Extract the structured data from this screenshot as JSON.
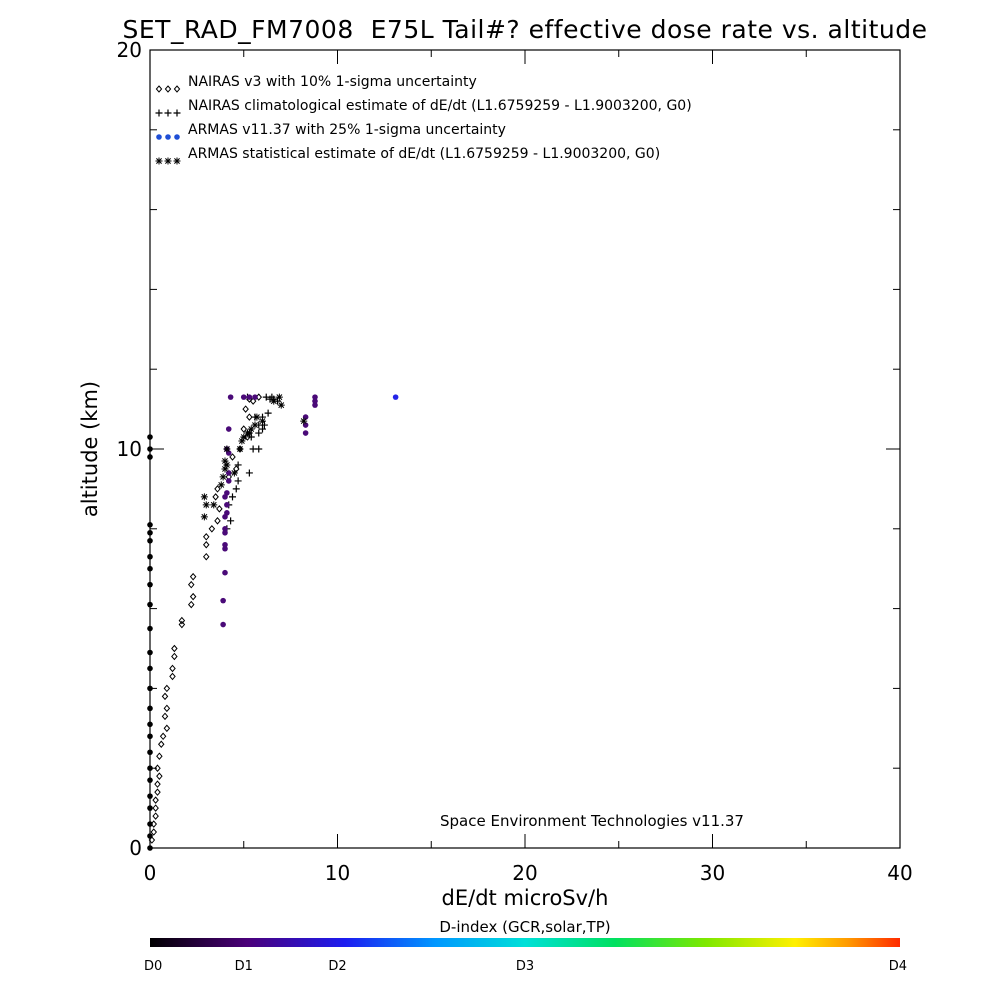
{
  "chart_data": {
    "type": "scatter",
    "title": "SET_RAD_FM7008  E75L Tail#? effective dose rate vs. altitude",
    "xlabel": "dE/dt microSv/h",
    "ylabel": "altitude (km)",
    "xlim": [
      0,
      40
    ],
    "ylim": [
      0,
      20
    ],
    "x_ticks": [
      "0",
      "10",
      "20",
      "30",
      "40"
    ],
    "y_ticks": [
      "0",
      "10",
      "20"
    ],
    "legend_position": "top-left",
    "annotation": "Space Environment Technologies v11.37",
    "colorbar": {
      "title": "D-index (GCR,solar,TP)",
      "labels": [
        "D0",
        "D1",
        "D2",
        "D3",
        "D4"
      ],
      "positions": [
        0,
        0.125,
        0.25,
        0.5,
        1.0
      ]
    },
    "series": [
      {
        "name": "NAIRAS v3 with 10% 1-sigma uncertainty",
        "marker": "diamond",
        "color": "#000000",
        "points": [
          [
            0.1,
            0.2
          ],
          [
            0.2,
            0.4
          ],
          [
            0.2,
            0.6
          ],
          [
            0.3,
            0.8
          ],
          [
            0.3,
            1.0
          ],
          [
            0.3,
            1.2
          ],
          [
            0.4,
            1.4
          ],
          [
            0.4,
            1.6
          ],
          [
            0.5,
            1.8
          ],
          [
            0.4,
            2.0
          ],
          [
            0.5,
            2.3
          ],
          [
            0.6,
            2.6
          ],
          [
            0.7,
            2.8
          ],
          [
            0.9,
            3.0
          ],
          [
            0.8,
            3.3
          ],
          [
            0.9,
            3.5
          ],
          [
            0.8,
            3.8
          ],
          [
            0.9,
            4.0
          ],
          [
            1.2,
            4.3
          ],
          [
            1.2,
            4.5
          ],
          [
            1.3,
            4.8
          ],
          [
            1.3,
            5.0
          ],
          [
            1.7,
            5.6
          ],
          [
            1.7,
            5.7
          ],
          [
            2.2,
            6.1
          ],
          [
            2.3,
            6.3
          ],
          [
            2.2,
            6.6
          ],
          [
            2.3,
            6.8
          ],
          [
            3.0,
            7.3
          ],
          [
            3.0,
            7.6
          ],
          [
            3.0,
            7.8
          ],
          [
            3.3,
            8.0
          ],
          [
            3.6,
            8.2
          ],
          [
            3.7,
            8.5
          ],
          [
            3.5,
            8.8
          ],
          [
            3.6,
            9.0
          ],
          [
            4.2,
            9.3
          ],
          [
            4.6,
            9.5
          ],
          [
            4.4,
            9.8
          ],
          [
            4.8,
            10.0
          ],
          [
            5.2,
            10.3
          ],
          [
            5.0,
            10.5
          ],
          [
            5.3,
            10.8
          ],
          [
            5.1,
            11.0
          ],
          [
            5.5,
            11.2
          ],
          [
            5.8,
            11.3
          ],
          [
            5.3,
            11.25
          ]
        ]
      },
      {
        "name": "NAIRAS climatological estimate of dE/dt (L1.6759259 - L1.9003200, G0)",
        "marker": "plus",
        "color": "#000000",
        "points": [
          [
            4.1,
            8.0
          ],
          [
            4.3,
            8.2
          ],
          [
            4.2,
            8.6
          ],
          [
            4.4,
            8.8
          ],
          [
            4.6,
            9.0
          ],
          [
            4.7,
            9.2
          ],
          [
            5.3,
            9.4
          ],
          [
            4.7,
            9.6
          ],
          [
            5.5,
            10.0
          ],
          [
            5.8,
            10.0
          ],
          [
            5.4,
            10.3
          ],
          [
            5.8,
            10.4
          ],
          [
            6.0,
            10.5
          ],
          [
            5.8,
            10.6
          ],
          [
            6.1,
            10.6
          ],
          [
            5.6,
            10.8
          ],
          [
            6.0,
            10.8
          ],
          [
            6.3,
            10.9
          ],
          [
            5.2,
            11.3
          ],
          [
            6.2,
            11.3
          ],
          [
            6.5,
            11.3
          ],
          [
            6.8,
            11.2
          ],
          [
            6.4,
            11.25
          ],
          [
            6.6,
            11.25
          ]
        ]
      },
      {
        "name": "ARMAS v11.37 with 25% 1-sigma uncertainty",
        "marker": "dot",
        "color": "#1f4fd6",
        "points": [
          [
            0.0,
            0.0
          ],
          [
            0.0,
            0.3
          ],
          [
            0.0,
            0.6
          ],
          [
            0.0,
            1.0
          ],
          [
            0.0,
            1.3
          ],
          [
            0.0,
            1.7
          ],
          [
            0.0,
            2.0
          ],
          [
            0.0,
            2.4
          ],
          [
            0.0,
            2.8
          ],
          [
            0.0,
            3.1
          ],
          [
            0.0,
            3.5
          ],
          [
            0.0,
            4.0
          ],
          [
            0.0,
            4.5
          ],
          [
            0.0,
            4.9
          ],
          [
            0.0,
            5.5
          ],
          [
            0.0,
            6.1
          ],
          [
            0.0,
            6.6
          ],
          [
            0.0,
            7.0
          ],
          [
            0.0,
            7.3
          ],
          [
            0.0,
            7.7
          ],
          [
            0.0,
            7.9
          ],
          [
            0.0,
            8.1
          ],
          [
            0.0,
            9.8
          ],
          [
            0.0,
            10.0
          ],
          [
            0.0,
            10.3
          ],
          [
            3.9,
            5.6
          ],
          [
            3.9,
            6.2
          ],
          [
            4.0,
            6.9
          ],
          [
            4.0,
            7.5
          ],
          [
            4.0,
            7.6
          ],
          [
            4.0,
            7.9
          ],
          [
            4.0,
            8.0
          ],
          [
            4.0,
            8.3
          ],
          [
            4.1,
            8.4
          ],
          [
            4.1,
            8.6
          ],
          [
            4.0,
            8.8
          ],
          [
            4.1,
            8.9
          ],
          [
            4.2,
            9.2
          ],
          [
            4.2,
            9.4
          ],
          [
            4.2,
            9.9
          ],
          [
            4.1,
            10.0
          ],
          [
            4.2,
            10.5
          ],
          [
            4.3,
            11.3
          ],
          [
            5.0,
            11.3
          ],
          [
            5.3,
            11.3
          ],
          [
            5.6,
            11.3
          ],
          [
            8.3,
            10.4
          ],
          [
            8.3,
            10.6
          ],
          [
            8.3,
            10.8
          ],
          [
            8.8,
            11.1
          ],
          [
            8.8,
            11.2
          ],
          [
            8.8,
            11.3
          ],
          [
            13.1,
            11.3
          ]
        ]
      },
      {
        "name": "ARMAS statistical estimate of dE/dt (L1.6759259 - L1.9003200, G0)",
        "marker": "asterisk",
        "color": "#000000",
        "points": [
          [
            2.9,
            8.3
          ],
          [
            3.0,
            8.6
          ],
          [
            2.9,
            8.8
          ],
          [
            3.4,
            8.6
          ],
          [
            3.8,
            9.1
          ],
          [
            3.9,
            9.3
          ],
          [
            4.0,
            9.5
          ],
          [
            4.1,
            9.6
          ],
          [
            4.5,
            9.4
          ],
          [
            4.0,
            9.7
          ],
          [
            4.1,
            10.0
          ],
          [
            4.9,
            10.2
          ],
          [
            5.0,
            10.3
          ],
          [
            5.2,
            10.4
          ],
          [
            5.4,
            10.5
          ],
          [
            5.6,
            10.6
          ],
          [
            5.7,
            10.8
          ],
          [
            6.0,
            10.7
          ],
          [
            5.3,
            10.4
          ],
          [
            4.8,
            10.0
          ],
          [
            7.0,
            11.1
          ],
          [
            6.6,
            11.2
          ],
          [
            6.9,
            11.3
          ],
          [
            8.2,
            10.7
          ]
        ]
      }
    ]
  }
}
